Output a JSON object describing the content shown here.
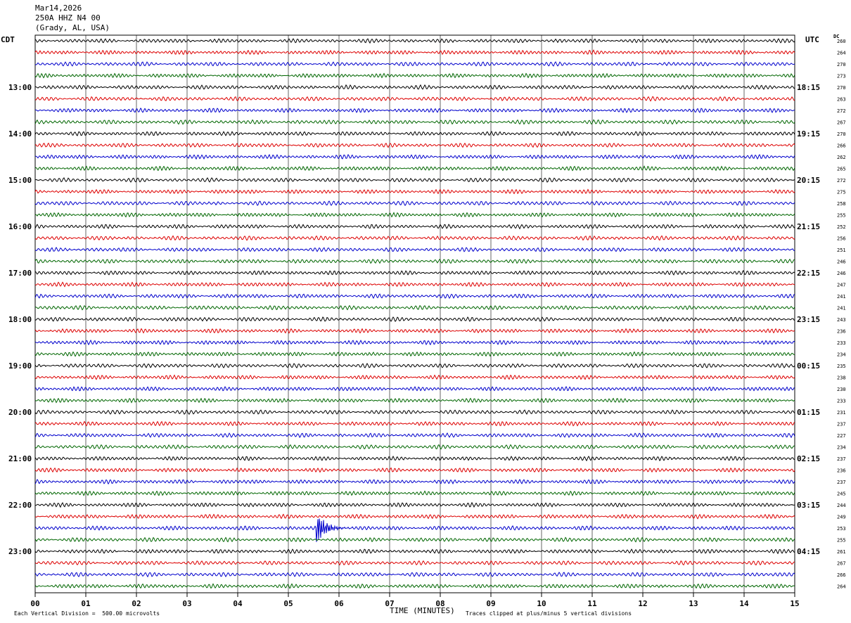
{
  "header": {
    "date": "Mar14,2026",
    "station": "250A HHZ N4 00",
    "location": "(Grady, AL, USA)"
  },
  "chart_data": {
    "type": "line",
    "left_axis_title": "CDT",
    "right_axis_title": "UTC",
    "dc_title": "DC",
    "xlabel": "TIME (MINUTES)",
    "x_ticks": [
      "00",
      "01",
      "02",
      "03",
      "04",
      "05",
      "06",
      "07",
      "08",
      "09",
      "10",
      "11",
      "12",
      "13",
      "14",
      "15"
    ],
    "xlim": [
      0,
      15
    ],
    "rows_per_hour": 4,
    "left_hour_labels": [
      "13:00",
      "14:00",
      "15:00",
      "16:00",
      "17:00",
      "18:00",
      "19:00",
      "20:00",
      "21:00",
      "22:00",
      "23:00"
    ],
    "right_hour_labels": [
      "18:15",
      "19:15",
      "20:15",
      "21:15",
      "22:15",
      "23:15",
      "00:15",
      "01:15",
      "02:15",
      "03:15",
      "04:15"
    ],
    "dc_values": [
      "260",
      "264",
      "270",
      "273",
      "270",
      "263",
      "272",
      "267",
      "270",
      "266",
      "262",
      "265",
      "272",
      "275",
      "258",
      "255",
      "252",
      "256",
      "251",
      "246",
      "246",
      "247",
      "241",
      "241",
      "243",
      "236",
      "233",
      "234",
      "235",
      "238",
      "230",
      "233",
      "231",
      "237",
      "227",
      "234",
      "237",
      "236",
      "237",
      "245",
      "244",
      "249",
      "253",
      "255",
      "261",
      "267",
      "266",
      "264"
    ],
    "trace_colors": [
      "#000000",
      "#dd0000",
      "#0000cc",
      "#006600"
    ],
    "event": {
      "row": 42,
      "minute": 5.55,
      "amplitude_divisions": 3
    }
  },
  "footer": {
    "scale_note": "Each Vertical Division =  500.00 microvolts",
    "clip_note": "Traces clipped at plus/minus 5 vertical divisions"
  }
}
